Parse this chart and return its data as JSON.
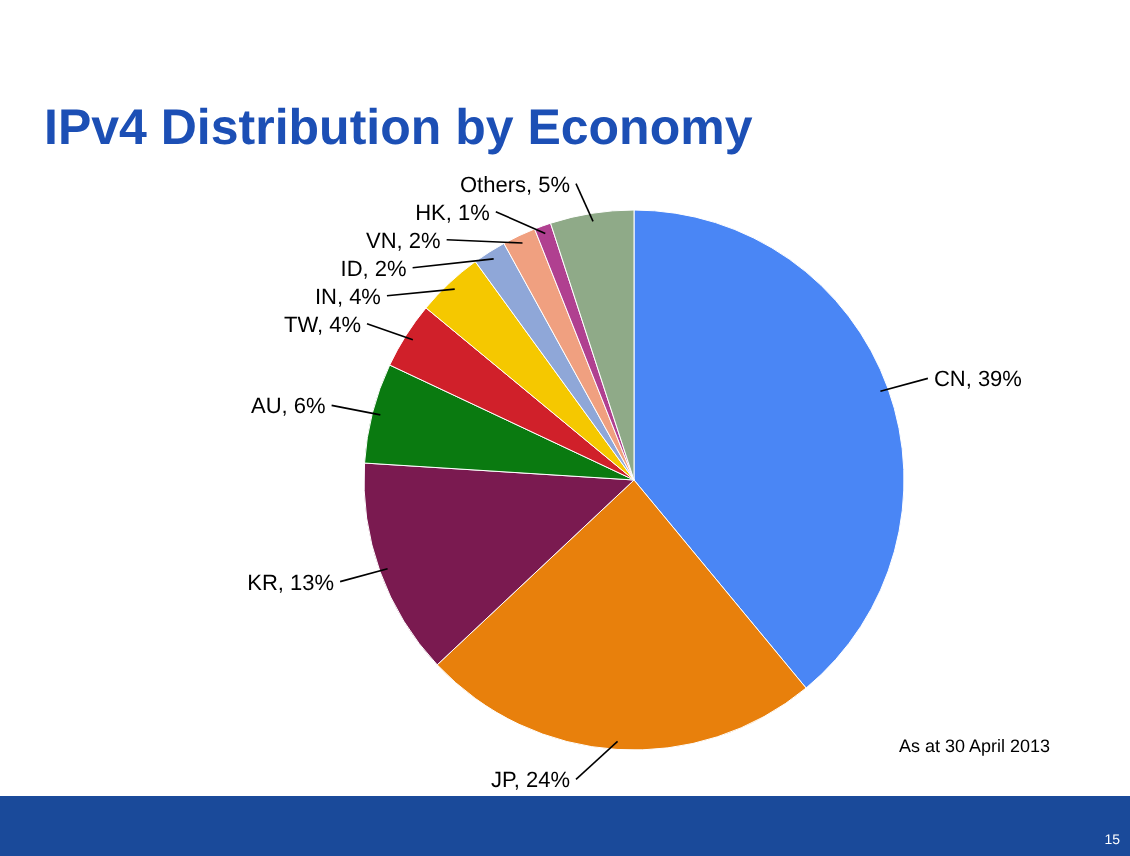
{
  "chart_data": {
    "type": "pie",
    "title": "IPv4 Distribution by Economy",
    "categories": [
      "CN",
      "JP",
      "KR",
      "AU",
      "TW",
      "IN",
      "ID",
      "VN",
      "HK",
      "Others"
    ],
    "values": [
      39,
      24,
      13,
      6,
      4,
      4,
      2,
      2,
      1,
      5
    ],
    "colors": [
      "#4a86f5",
      "#e8800c",
      "#7a1a50",
      "#0a7a10",
      "#d0202a",
      "#f5c800",
      "#8fa7d8",
      "#f0a080",
      "#b04090",
      "#8faa88"
    ],
    "value_labels": [
      ", 39%",
      ", 24%",
      ", 13%",
      ", 6%",
      ", 4%",
      ", 4%",
      ", 2%",
      ", 2%",
      ", 1%",
      ", 5%"
    ],
    "annotations": [
      "As at 30 April 2013",
      "15"
    ]
  }
}
